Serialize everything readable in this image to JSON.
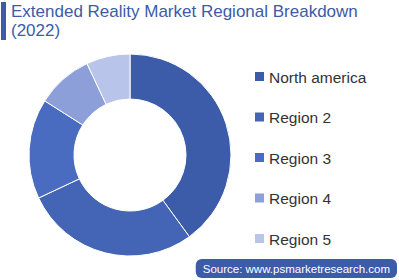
{
  "chart_data": {
    "type": "pie",
    "title": "Extended Reality Market Regional Breakdown (2022)",
    "categories": [
      "North america",
      "Region 2",
      "Region 3",
      "Region 4",
      "Region 5"
    ],
    "values": [
      40,
      28,
      16,
      9,
      7
    ],
    "colors": [
      "#3c5ba8",
      "#4465b6",
      "#4a6cc0",
      "#8c9fd9",
      "#b9c4ea"
    ],
    "legend": "right",
    "source": "Source: www.psmarketresearch.com"
  }
}
